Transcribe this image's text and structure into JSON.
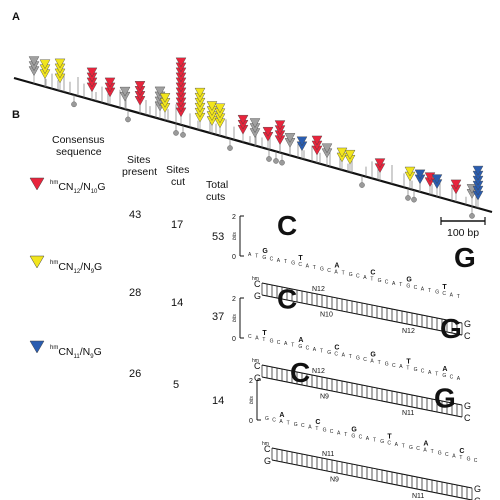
{
  "panel_a": {
    "label": "A",
    "scale_label": "100 bp"
  },
  "panel_b": {
    "label": "B",
    "headers": {
      "consensus_line1": "Consensus",
      "consensus_line2": "sequence",
      "sites_present_line1": "Sites",
      "sites_present_line2": "present",
      "sites_cut_line1": "Sites",
      "sites_cut_line2": "cut",
      "total_cuts_line1": "Total",
      "total_cuts_line2": "cuts"
    },
    "rows": [
      {
        "color": "#e8243c",
        "prefix_sup": "hm",
        "seq": "CN12/N10G",
        "seq_main": "CN",
        "sub1": "12",
        "mid": "/N",
        "sub2": "10",
        "end": "G",
        "present": "43",
        "cut": "17",
        "total": "53"
      },
      {
        "color": "#f2e51c",
        "prefix_sup": "hm",
        "seq": "CN12/N9G",
        "seq_main": "CN",
        "sub1": "12",
        "mid": "/N",
        "sub2": "9",
        "end": "G",
        "present": "28",
        "cut": "14",
        "total": "37"
      },
      {
        "color": "#2a5db0",
        "prefix_sup": "hm",
        "seq": "CN11/N9G",
        "seq_main": "CN",
        "sub1": "11",
        "mid": "/N",
        "sub2": "9",
        "end": "G",
        "present": "26",
        "cut": "5",
        "total": "14"
      }
    ],
    "logo_axis": {
      "top": "2",
      "bottom": "0",
      "unit": "bits"
    },
    "logos": [
      {
        "n_top": "N12",
        "n_bot": "N10",
        "n_top2": "N12",
        "hm": "hm"
      },
      {
        "n_top": "N12",
        "n_bot": "N9",
        "n_top2": "N11",
        "hm": "hm"
      },
      {
        "n_top": "N11",
        "n_bot": "N9",
        "n_top2": "N11",
        "hm": "hm"
      }
    ]
  },
  "colors": {
    "red": "#e8243c",
    "yellow": "#f2e51c",
    "blue": "#2a5db0",
    "gray": "#a0a0a0"
  }
}
